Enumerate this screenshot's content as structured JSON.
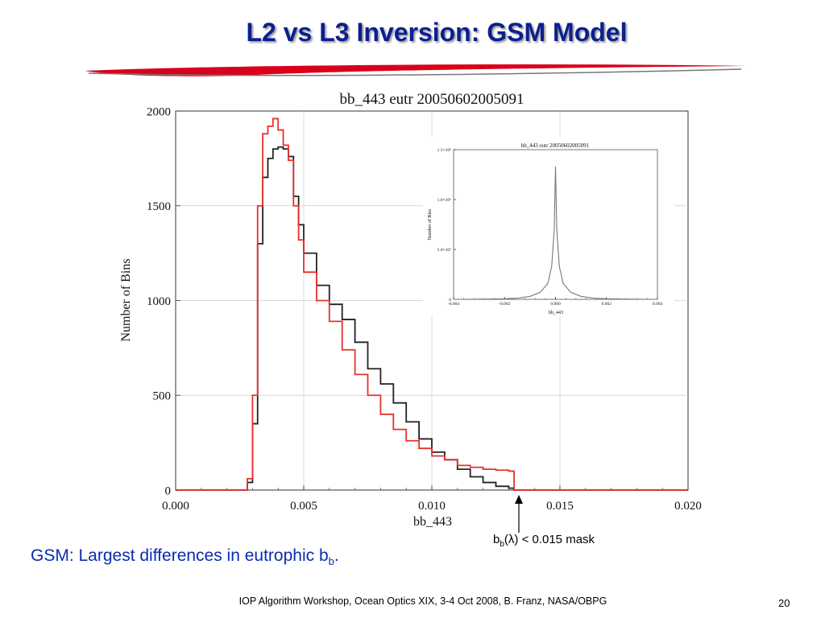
{
  "slide": {
    "title": "L2 vs L3 Inversion: GSM Model",
    "caption_main": "GSM: Largest differences in eutrophic b",
    "caption_sub": "b",
    "caption_end": ".",
    "mask_label_b": "b",
    "mask_label_sub": "b",
    "mask_label_rest": "(λ) < 0.015 mask",
    "footer": "IOP Algorithm Workshop, Ocean Optics XIX, 3-4 Oct 2008, B. Franz, NASA/OBPG",
    "page_number": "20",
    "colors": {
      "title": "#0b1f8f",
      "caption": "#0b2bb3",
      "swoosh": "#d9001b"
    }
  },
  "chart_data": [
    {
      "type": "line",
      "title": "bb_443 eutr 20050602005091",
      "xlabel": "bb_443",
      "ylabel": "Number of Bins",
      "xlim": [
        0.0,
        0.02
      ],
      "ylim": [
        0,
        2000
      ],
      "xticks": [
        "0.000",
        "0.005",
        "0.010",
        "0.015",
        "0.020"
      ],
      "yticks": [
        "0",
        "500",
        "1000",
        "1500",
        "2000"
      ],
      "grid": true,
      "series": [
        {
          "color": "#222222",
          "x": [
            0.0,
            0.0025,
            0.0028,
            0.003,
            0.0032,
            0.0034,
            0.0036,
            0.0038,
            0.004,
            0.0042,
            0.0044,
            0.0046,
            0.0048,
            0.005,
            0.0055,
            0.006,
            0.0065,
            0.007,
            0.0075,
            0.008,
            0.0085,
            0.009,
            0.0095,
            0.01,
            0.0105,
            0.011,
            0.0115,
            0.012,
            0.0125,
            0.013,
            0.0132,
            0.014,
            0.02
          ],
          "y": [
            0,
            0,
            40,
            350,
            1300,
            1650,
            1750,
            1800,
            1810,
            1800,
            1760,
            1550,
            1400,
            1250,
            1080,
            980,
            900,
            780,
            640,
            560,
            460,
            360,
            270,
            200,
            160,
            110,
            70,
            40,
            20,
            10,
            0,
            0,
            0
          ]
        },
        {
          "color": "#e8302a",
          "x": [
            0.0,
            0.0025,
            0.0028,
            0.003,
            0.0032,
            0.0034,
            0.0036,
            0.0038,
            0.004,
            0.0042,
            0.0044,
            0.0046,
            0.0048,
            0.005,
            0.0055,
            0.006,
            0.0065,
            0.007,
            0.0075,
            0.008,
            0.0085,
            0.009,
            0.0095,
            0.01,
            0.0105,
            0.011,
            0.0115,
            0.012,
            0.0125,
            0.013,
            0.0132,
            0.01321,
            0.014,
            0.02
          ],
          "y": [
            0,
            0,
            60,
            500,
            1500,
            1880,
            1920,
            1960,
            1900,
            1820,
            1740,
            1500,
            1320,
            1150,
            1000,
            890,
            740,
            610,
            500,
            400,
            320,
            260,
            220,
            180,
            160,
            130,
            120,
            110,
            105,
            100,
            95,
            0,
            0,
            0
          ]
        }
      ]
    },
    {
      "type": "line",
      "title": "bb_443 eutr 20050602005091",
      "xlabel": "bb_443",
      "ylabel": "Number of Bins",
      "xlim": [
        -0.004,
        0.004
      ],
      "ylim": [
        0,
        1500000
      ],
      "xticks": [
        "-0.004",
        "-0.002",
        "0.000",
        "0.002",
        "0.004"
      ],
      "yticks": [
        "0",
        "5.0×10⁵",
        "1.0×10⁶",
        "1.5×10⁶"
      ],
      "series": [
        {
          "color": "#777777",
          "x": [
            -0.004,
            -0.003,
            -0.002,
            -0.0015,
            -0.001,
            -0.0006,
            -0.0003,
            -0.00015,
            -5e-05,
            0.0,
            5e-05,
            0.00015,
            0.0003,
            0.0006,
            0.001,
            0.0015,
            0.002,
            0.003,
            0.004
          ],
          "y": [
            0,
            2000,
            6000,
            12000,
            30000,
            70000,
            160000,
            330000,
            700000,
            1330000,
            700000,
            330000,
            160000,
            70000,
            30000,
            12000,
            6000,
            2000,
            0
          ]
        }
      ]
    }
  ]
}
